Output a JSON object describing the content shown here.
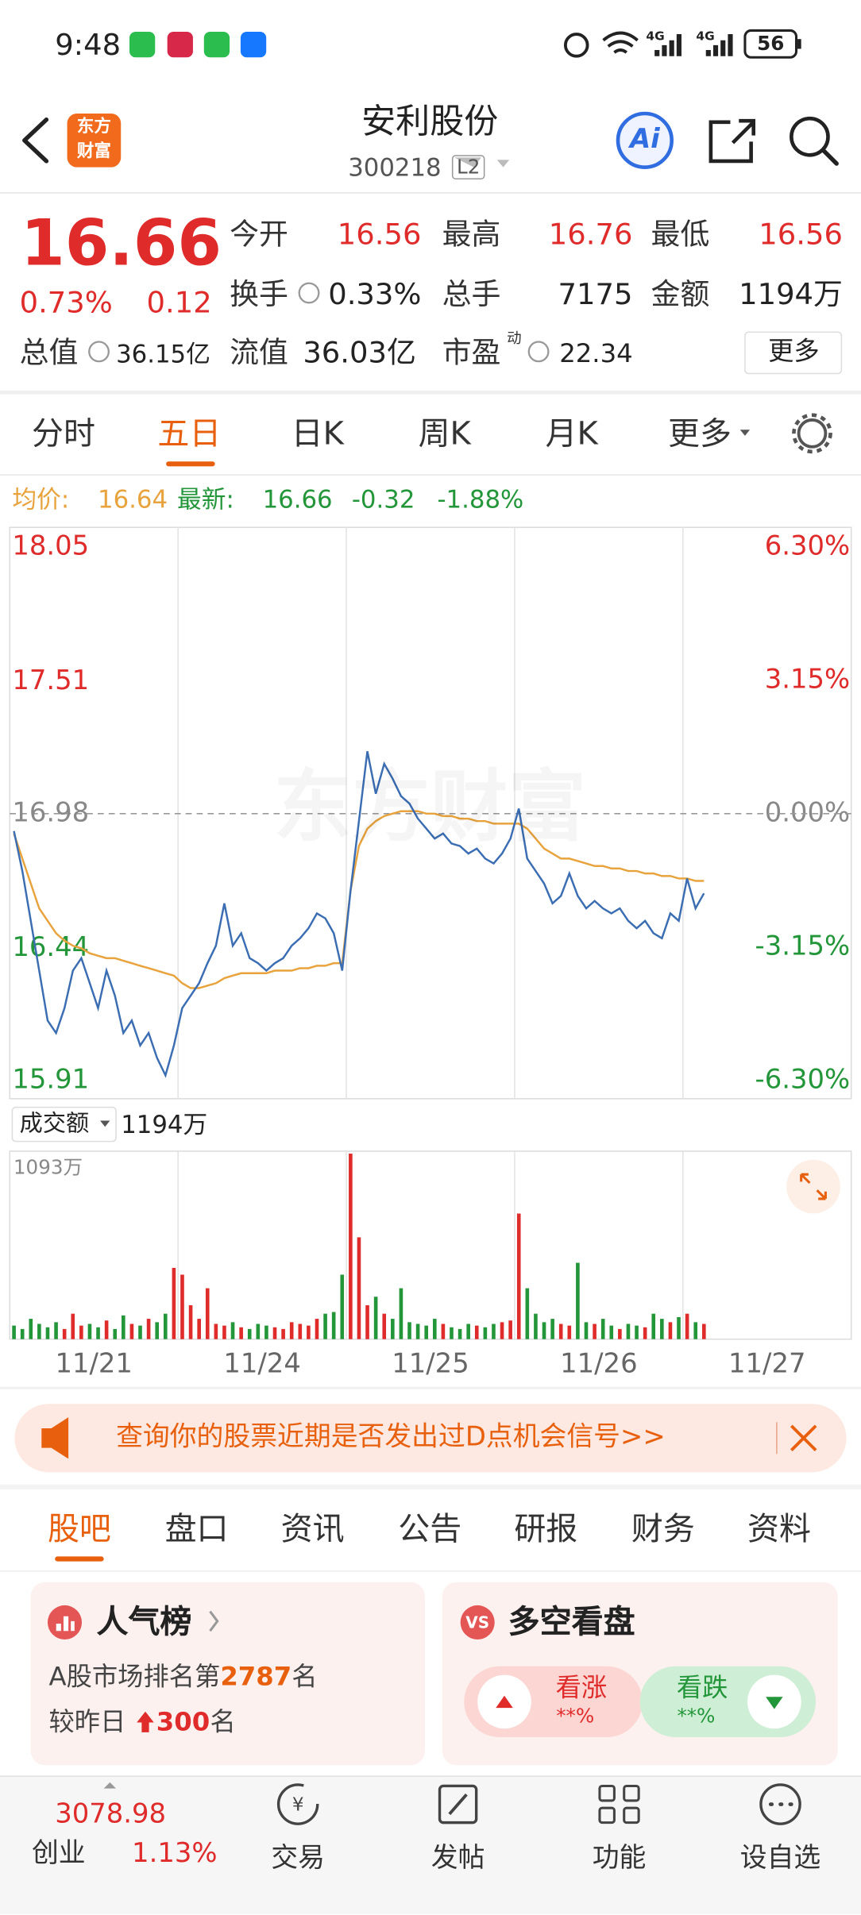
{
  "status_bar": {
    "time": "9:48",
    "network": "4G",
    "network_2": "4G",
    "battery": "56"
  },
  "header": {
    "logo": [
      "东方",
      "财富"
    ],
    "title": "安利股份",
    "code": "300218",
    "level": "L2",
    "ai": "Ai"
  },
  "quote": {
    "price": "16.66",
    "change_pct": "0.73%",
    "change": "0.12",
    "row1": [
      {
        "label": "今开",
        "value": "16.56"
      },
      {
        "label": "最高",
        "value": "16.76"
      },
      {
        "label": "最低",
        "value": "16.56"
      }
    ],
    "row2": [
      {
        "label": "换手",
        "value": "0.33%"
      },
      {
        "label": "总手",
        "value": "7175"
      },
      {
        "label": "金额",
        "value": "1194万"
      }
    ],
    "row3": [
      {
        "label": "总值",
        "value": "36.15亿"
      },
      {
        "label": "流值",
        "value": "36.03亿"
      },
      {
        "label": "市盈",
        "sup": "动",
        "value": "22.34"
      }
    ],
    "more": "更多"
  },
  "tabs": [
    "分时",
    "五日",
    "日K",
    "周K",
    "月K",
    "更多"
  ],
  "chart_data": {
    "type": "line",
    "summary": {
      "avg_label": "均价:",
      "avg": "16.64",
      "latest_label": "最新:",
      "latest": "16.66",
      "change": "-0.32",
      "change_pct": "-1.88%"
    },
    "watermark": "东方财富",
    "categories": [
      "11/21",
      "11/24",
      "11/25",
      "11/26",
      "11/27"
    ],
    "ylim": [
      15.91,
      18.05
    ],
    "yticks": [
      15.91,
      16.44,
      16.98,
      17.51,
      18.05
    ],
    "y2lim": [
      -6.3,
      6.3
    ],
    "y2ticks": [
      {
        "value": -6.3,
        "label": "-6.30%"
      },
      {
        "value": -3.15,
        "label": "-3.15%"
      },
      {
        "value": 0,
        "label": "0.00%"
      },
      {
        "value": 3.15,
        "label": "3.15%"
      },
      {
        "value": 6.3,
        "label": "6.30%"
      }
    ],
    "series": [
      {
        "name": "均价",
        "color": "#e8a33d",
        "values": [
          [
            16.9,
            16.8,
            16.7,
            16.6,
            16.55,
            16.5,
            16.47,
            16.45,
            16.44,
            16.42,
            16.41,
            16.4,
            16.4,
            16.39,
            16.38,
            16.37,
            16.36,
            16.35,
            16.34,
            16.33
          ],
          [
            16.3,
            16.28,
            16.28,
            16.29,
            16.3,
            16.32,
            16.33,
            16.34,
            16.34,
            16.34,
            16.34,
            16.35,
            16.35,
            16.35,
            16.36,
            16.36,
            16.37,
            16.37,
            16.38,
            16.38
          ],
          [
            16.67,
            16.85,
            16.92,
            16.95,
            16.97,
            16.98,
            16.99,
            16.99,
            16.99,
            16.98,
            16.98,
            16.97,
            16.97,
            16.96,
            16.96,
            16.95,
            16.95,
            16.94,
            16.94,
            16.94
          ],
          [
            16.94,
            16.92,
            16.88,
            16.84,
            16.82,
            16.8,
            16.8,
            16.79,
            16.78,
            16.77,
            16.77,
            16.76,
            16.76,
            16.75,
            16.75,
            16.74,
            16.74,
            16.73,
            16.73,
            16.72
          ],
          [
            16.72,
            16.71,
            16.71
          ]
        ]
      },
      {
        "name": "最新",
        "color": "#3b6db3",
        "values": [
          [
            16.91,
            16.75,
            16.55,
            16.35,
            16.15,
            16.1,
            16.2,
            16.35,
            16.4,
            16.3,
            16.2,
            16.35,
            16.25,
            16.1,
            16.15,
            16.05,
            16.1,
            16.0,
            15.93,
            16.05
          ],
          [
            16.2,
            16.25,
            16.3,
            16.38,
            16.45,
            16.62,
            16.45,
            16.5,
            16.4,
            16.38,
            16.35,
            16.38,
            16.4,
            16.45,
            16.48,
            16.52,
            16.58,
            16.56,
            16.5,
            16.35
          ],
          [
            16.67,
            16.95,
            17.23,
            17.06,
            17.18,
            17.12,
            17.05,
            17.02,
            16.96,
            16.92,
            16.88,
            16.9,
            16.86,
            16.85,
            16.82,
            16.84,
            16.8,
            16.78,
            16.82,
            16.88
          ],
          [
            17.0,
            16.8,
            16.75,
            16.7,
            16.62,
            16.65,
            16.74,
            16.65,
            16.6,
            16.63,
            16.6,
            16.58,
            16.6,
            16.55,
            16.52,
            16.55,
            16.5,
            16.48,
            16.58,
            16.55
          ],
          [
            16.72,
            16.6,
            16.66
          ]
        ]
      }
    ],
    "volume": {
      "label": "成交额",
      "total": "1194万",
      "ylim": [
        0,
        1093
      ],
      "yticks": [
        {
          "value": 1093,
          "label": "1093万"
        }
      ],
      "values": [
        [
          80,
          60,
          120,
          90,
          70,
          100,
          60,
          150,
          80,
          90,
          70,
          110,
          60,
          140,
          90,
          80,
          120,
          100,
          150,
          420
        ],
        [
          380,
          200,
          120,
          300,
          90,
          80,
          100,
          70,
          60,
          90,
          80,
          70,
          60,
          100,
          90,
          80,
          120,
          150,
          160,
          380
        ],
        [
          1093,
          600,
          200,
          250,
          150,
          120,
          300,
          100,
          90,
          80,
          120,
          90,
          70,
          60,
          90,
          80,
          70,
          90,
          100,
          110
        ],
        [
          740,
          300,
          150,
          100,
          120,
          90,
          80,
          450,
          100,
          90,
          120,
          80,
          60,
          90,
          80,
          70,
          150,
          120,
          100,
          130
        ],
        [
          150,
          100,
          90
        ]
      ]
    }
  },
  "banner": "查询你的股票近期是否发出过D点机会信号>>",
  "sub_tabs": [
    "股吧",
    "盘口",
    "资讯",
    "公告",
    "研报",
    "财务",
    "资料"
  ],
  "popularity": {
    "title": "人气榜",
    "rank_prefix": "A股市场排名第",
    "rank": "2787",
    "rank_suffix": "名",
    "change_prefix": "较昨日",
    "change": "300",
    "change_suffix": "名"
  },
  "sentiment": {
    "title": "多空看盘",
    "bull": "看涨",
    "bull_value": "**%",
    "bear": "看跌",
    "bear_value": "**%"
  },
  "bottom_nav": {
    "index_value": "3078.98",
    "index_name": "创业",
    "index_change": "1.13%",
    "items": [
      "交易",
      "发帖",
      "功能",
      "设自选"
    ]
  }
}
